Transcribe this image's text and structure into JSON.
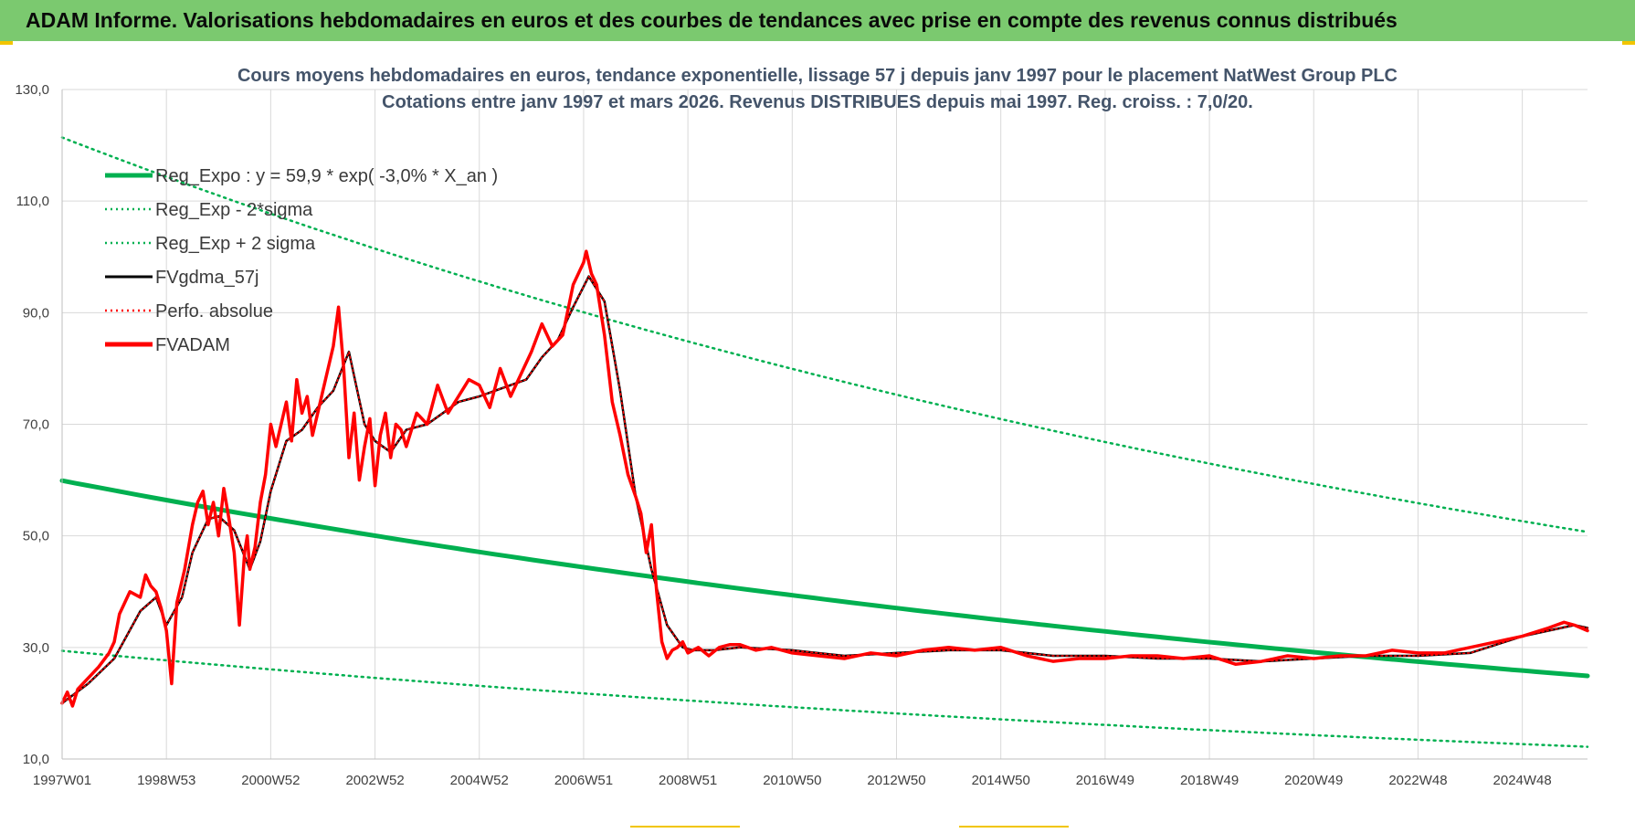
{
  "banner": {
    "title": "ADAM Informe. Valorisations hebdomadaires en euros et des courbes de tendances avec prise en compte des revenus connus distribués"
  },
  "colors": {
    "banner_bg": "#7bc96f",
    "reg_expo": "#00b050",
    "fvgdma": "#000000",
    "fvadam": "#ff0000",
    "perfo": "#ff0000",
    "title": "#44546a"
  },
  "chart_data": {
    "type": "line",
    "title_line1": "Cours moyens hebdomadaires en euros, tendance exponentielle, lissage 57 j depuis janv 1997 pour le placement NatWest Group PLC",
    "title_line2": "Cotations entre janv 1997 et mars 2026. Revenus DISTRIBUES depuis mai 1997. Reg. croiss. : 7,0/20.",
    "xlabel": "",
    "ylabel": "",
    "ylim": [
      10,
      130
    ],
    "xlim": [
      1997.0,
      2026.25
    ],
    "y_ticks": [
      "130,0",
      "110,0",
      "90,0",
      "70,0",
      "50,0",
      "30,0",
      "10,0"
    ],
    "y_tick_values": [
      130,
      110,
      90,
      70,
      50,
      30,
      10
    ],
    "x_ticks": [
      "1997W01",
      "1998W53",
      "2000W52",
      "2002W52",
      "2004W52",
      "2006W51",
      "2008W51",
      "2010W50",
      "2012W50",
      "2014W50",
      "2016W49",
      "2018W49",
      "2020W49",
      "2022W48",
      "2024W48"
    ],
    "x_tick_values": [
      1997.0,
      1999.0,
      2001.0,
      2003.0,
      2005.0,
      2007.0,
      2009.0,
      2011.0,
      2013.0,
      2015.0,
      2017.0,
      2019.0,
      2021.0,
      2023.0,
      2025.0
    ],
    "grid": true,
    "legend_position": "top-left",
    "legend": [
      {
        "label": "Reg_Expo : y = 59,9 * exp( -3,0% *  X_an )",
        "style": "solid-thick",
        "color": "#00b050"
      },
      {
        "label": "Reg_Exp - 2*sigma",
        "style": "dotted",
        "color": "#00b050"
      },
      {
        "label": "Reg_Exp + 2 sigma",
        "style": "dotted",
        "color": "#00b050"
      },
      {
        "label": "FVgdma_57j",
        "style": "solid",
        "color": "#000000"
      },
      {
        "label": "Perfo. absolue",
        "style": "dotted",
        "color": "#ff0000"
      },
      {
        "label": "FVADAM",
        "style": "solid-thick",
        "color": "#ff0000"
      }
    ],
    "series": [
      {
        "name": "Reg_Expo : y = 59,9 * exp( -3,0% *  X_an )",
        "x": [
          1997.0,
          2026.25
        ],
        "values": [
          59.9,
          24.9
        ],
        "curve": "exponential"
      },
      {
        "name": "Reg_Exp - 2*sigma",
        "x": [
          1997.0,
          2026.25
        ],
        "values": [
          29.4,
          12.2
        ],
        "curve": "exponential"
      },
      {
        "name": "Reg_Exp + 2 sigma",
        "x": [
          1997.0,
          2026.25
        ],
        "values": [
          121.4,
          50.7
        ],
        "curve": "exponential"
      },
      {
        "name": "FVgdma_57j",
        "x": [
          1997.0,
          1997.5,
          1998.0,
          1998.5,
          1998.8,
          1999.0,
          1999.3,
          1999.5,
          1999.8,
          2000.0,
          2000.3,
          2000.6,
          2000.8,
          2001.0,
          2001.3,
          2001.6,
          2001.9,
          2002.2,
          2002.5,
          2002.8,
          2003.0,
          2003.3,
          2003.6,
          2004.0,
          2004.3,
          2004.6,
          2005.0,
          2005.3,
          2005.6,
          2005.9,
          2006.2,
          2006.5,
          2006.8,
          2007.1,
          2007.4,
          2007.7,
          2008.0,
          2008.3,
          2008.6,
          2008.9,
          2009.1,
          2009.5,
          2010.0,
          2011.0,
          2012.0,
          2013.0,
          2014.0,
          2015.0,
          2016.0,
          2017.0,
          2018.0,
          2019.0,
          2020.0,
          2021.0,
          2022.0,
          2023.0,
          2024.0,
          2024.5,
          2025.0,
          2025.5,
          2026.0,
          2026.25
        ],
        "values": [
          20.0,
          23.5,
          28.0,
          36.5,
          39.0,
          34.0,
          39.0,
          47.0,
          53.0,
          53.5,
          51.0,
          44.0,
          49.0,
          58.0,
          67.0,
          69.0,
          73.0,
          76.0,
          83.0,
          70.0,
          67.0,
          65.0,
          69.0,
          70.0,
          72.0,
          74.0,
          75.0,
          76.0,
          77.0,
          78.0,
          82.0,
          85.0,
          91.0,
          96.5,
          92.0,
          76.0,
          57.0,
          44.0,
          34.0,
          30.0,
          29.5,
          29.5,
          30.0,
          29.5,
          28.5,
          29.0,
          29.5,
          29.5,
          28.5,
          28.5,
          28.0,
          28.0,
          27.5,
          28.0,
          28.5,
          28.5,
          29.0,
          30.5,
          32.0,
          33.0,
          34.0,
          33.5
        ]
      },
      {
        "name": "Perfo. absolue",
        "x": [
          1997.0,
          1997.5,
          1998.0,
          1998.5,
          1998.8,
          1999.0,
          1999.3,
          1999.5,
          1999.8,
          2000.0,
          2000.3,
          2000.6,
          2000.8,
          2001.0,
          2001.3,
          2001.6,
          2001.9,
          2002.2,
          2002.5,
          2002.8,
          2003.0,
          2003.3,
          2003.6,
          2004.0,
          2004.3,
          2004.6,
          2005.0,
          2005.3,
          2005.6,
          2005.9,
          2006.2,
          2006.5,
          2006.8,
          2007.1,
          2007.4,
          2007.7,
          2008.0,
          2008.3,
          2008.6,
          2008.9,
          2009.1,
          2009.5,
          2010.0,
          2011.0,
          2012.0,
          2013.0,
          2014.0,
          2015.0,
          2016.0,
          2017.0,
          2018.0,
          2019.0,
          2020.0,
          2021.0,
          2022.0,
          2023.0,
          2024.0,
          2024.5,
          2025.0,
          2025.5,
          2026.0,
          2026.25
        ],
        "values": [
          20.0,
          23.5,
          28.0,
          36.5,
          39.0,
          34.0,
          39.0,
          47.0,
          53.0,
          53.5,
          51.0,
          44.0,
          49.0,
          58.0,
          67.0,
          69.0,
          73.0,
          76.0,
          83.0,
          70.0,
          67.0,
          65.0,
          69.0,
          70.0,
          72.0,
          74.0,
          75.0,
          76.0,
          77.0,
          78.0,
          82.0,
          85.0,
          91.0,
          96.5,
          92.0,
          76.0,
          57.0,
          44.0,
          34.0,
          30.0,
          29.5,
          29.5,
          30.0,
          29.5,
          28.5,
          29.0,
          29.5,
          29.5,
          28.5,
          28.5,
          28.0,
          28.0,
          27.5,
          28.0,
          28.5,
          28.5,
          29.0,
          30.5,
          32.0,
          33.0,
          34.0,
          33.5
        ]
      },
      {
        "name": "FVADAM",
        "x": [
          1997.0,
          1997.1,
          1997.2,
          1997.3,
          1997.5,
          1997.7,
          1997.9,
          1998.0,
          1998.1,
          1998.3,
          1998.5,
          1998.6,
          1998.7,
          1998.8,
          1998.9,
          1999.0,
          1999.1,
          1999.2,
          1999.35,
          1999.5,
          1999.6,
          1999.7,
          1999.8,
          1999.9,
          2000.0,
          2000.1,
          2000.2,
          2000.3,
          2000.4,
          2000.5,
          2000.55,
          2000.6,
          2000.7,
          2000.8,
          2000.9,
          2001.0,
          2001.1,
          2001.2,
          2001.3,
          2001.4,
          2001.5,
          2001.6,
          2001.7,
          2001.8,
          2001.9,
          2002.0,
          2002.1,
          2002.2,
          2002.3,
          2002.4,
          2002.5,
          2002.6,
          2002.7,
          2002.8,
          2002.9,
          2003.0,
          2003.1,
          2003.2,
          2003.3,
          2003.4,
          2003.5,
          2003.6,
          2003.8,
          2004.0,
          2004.2,
          2004.4,
          2004.6,
          2004.8,
          2005.0,
          2005.2,
          2005.4,
          2005.6,
          2005.8,
          2006.0,
          2006.2,
          2006.4,
          2006.6,
          2006.8,
          2007.0,
          2007.05,
          2007.15,
          2007.25,
          2007.4,
          2007.55,
          2007.7,
          2007.85,
          2008.0,
          2008.1,
          2008.2,
          2008.3,
          2008.4,
          2008.5,
          2008.6,
          2008.7,
          2008.8,
          2008.9,
          2009.0,
          2009.2,
          2009.4,
          2009.6,
          2009.8,
          2010.0,
          2010.3,
          2010.6,
          2011.0,
          2011.5,
          2012.0,
          2012.5,
          2013.0,
          2013.5,
          2014.0,
          2014.5,
          2015.0,
          2015.5,
          2016.0,
          2016.5,
          2017.0,
          2017.5,
          2018.0,
          2018.5,
          2019.0,
          2019.5,
          2020.0,
          2020.5,
          2021.0,
          2021.5,
          2022.0,
          2022.5,
          2023.0,
          2023.5,
          2024.0,
          2024.5,
          2025.0,
          2025.5,
          2025.8,
          2026.0,
          2026.25
        ],
        "values": [
          20.0,
          22.0,
          19.5,
          22.5,
          24.5,
          26.5,
          29.0,
          31.0,
          36.0,
          40.0,
          39.0,
          43.0,
          41.0,
          40.0,
          37.0,
          33.0,
          23.5,
          38.0,
          44.0,
          52.0,
          56.0,
          58.0,
          52.0,
          56.0,
          50.0,
          58.5,
          53.0,
          47.0,
          34.0,
          47.0,
          50.0,
          44.0,
          48.0,
          56.0,
          61.0,
          70.0,
          66.0,
          70.0,
          74.0,
          67.0,
          78.0,
          72.0,
          75.0,
          68.0,
          72.0,
          76.0,
          80.0,
          84.0,
          91.0,
          80.0,
          64.0,
          72.0,
          60.0,
          66.0,
          71.0,
          59.0,
          68.0,
          72.0,
          64.0,
          70.0,
          69.0,
          66.0,
          72.0,
          70.0,
          77.0,
          72.0,
          75.0,
          78.0,
          77.0,
          73.0,
          80.0,
          75.0,
          79.0,
          83.0,
          88.0,
          84.0,
          86.0,
          95.0,
          99.0,
          101.0,
          97.0,
          95.0,
          86.0,
          74.0,
          68.0,
          61.0,
          57.0,
          54.0,
          47.0,
          52.0,
          40.0,
          31.0,
          28.0,
          29.5,
          30.0,
          31.0,
          29.0,
          30.0,
          28.5,
          30.0,
          30.5,
          30.5,
          29.5,
          30.0,
          29.0,
          28.5,
          28.0,
          29.0,
          28.5,
          29.5,
          30.0,
          29.5,
          30.0,
          28.5,
          27.5,
          28.0,
          28.0,
          28.5,
          28.5,
          28.0,
          28.5,
          27.0,
          27.5,
          28.5,
          28.0,
          28.5,
          28.5,
          29.5,
          29.0,
          29.0,
          30.0,
          31.0,
          32.0,
          33.5,
          34.5,
          34.0,
          33.0
        ]
      }
    ]
  }
}
